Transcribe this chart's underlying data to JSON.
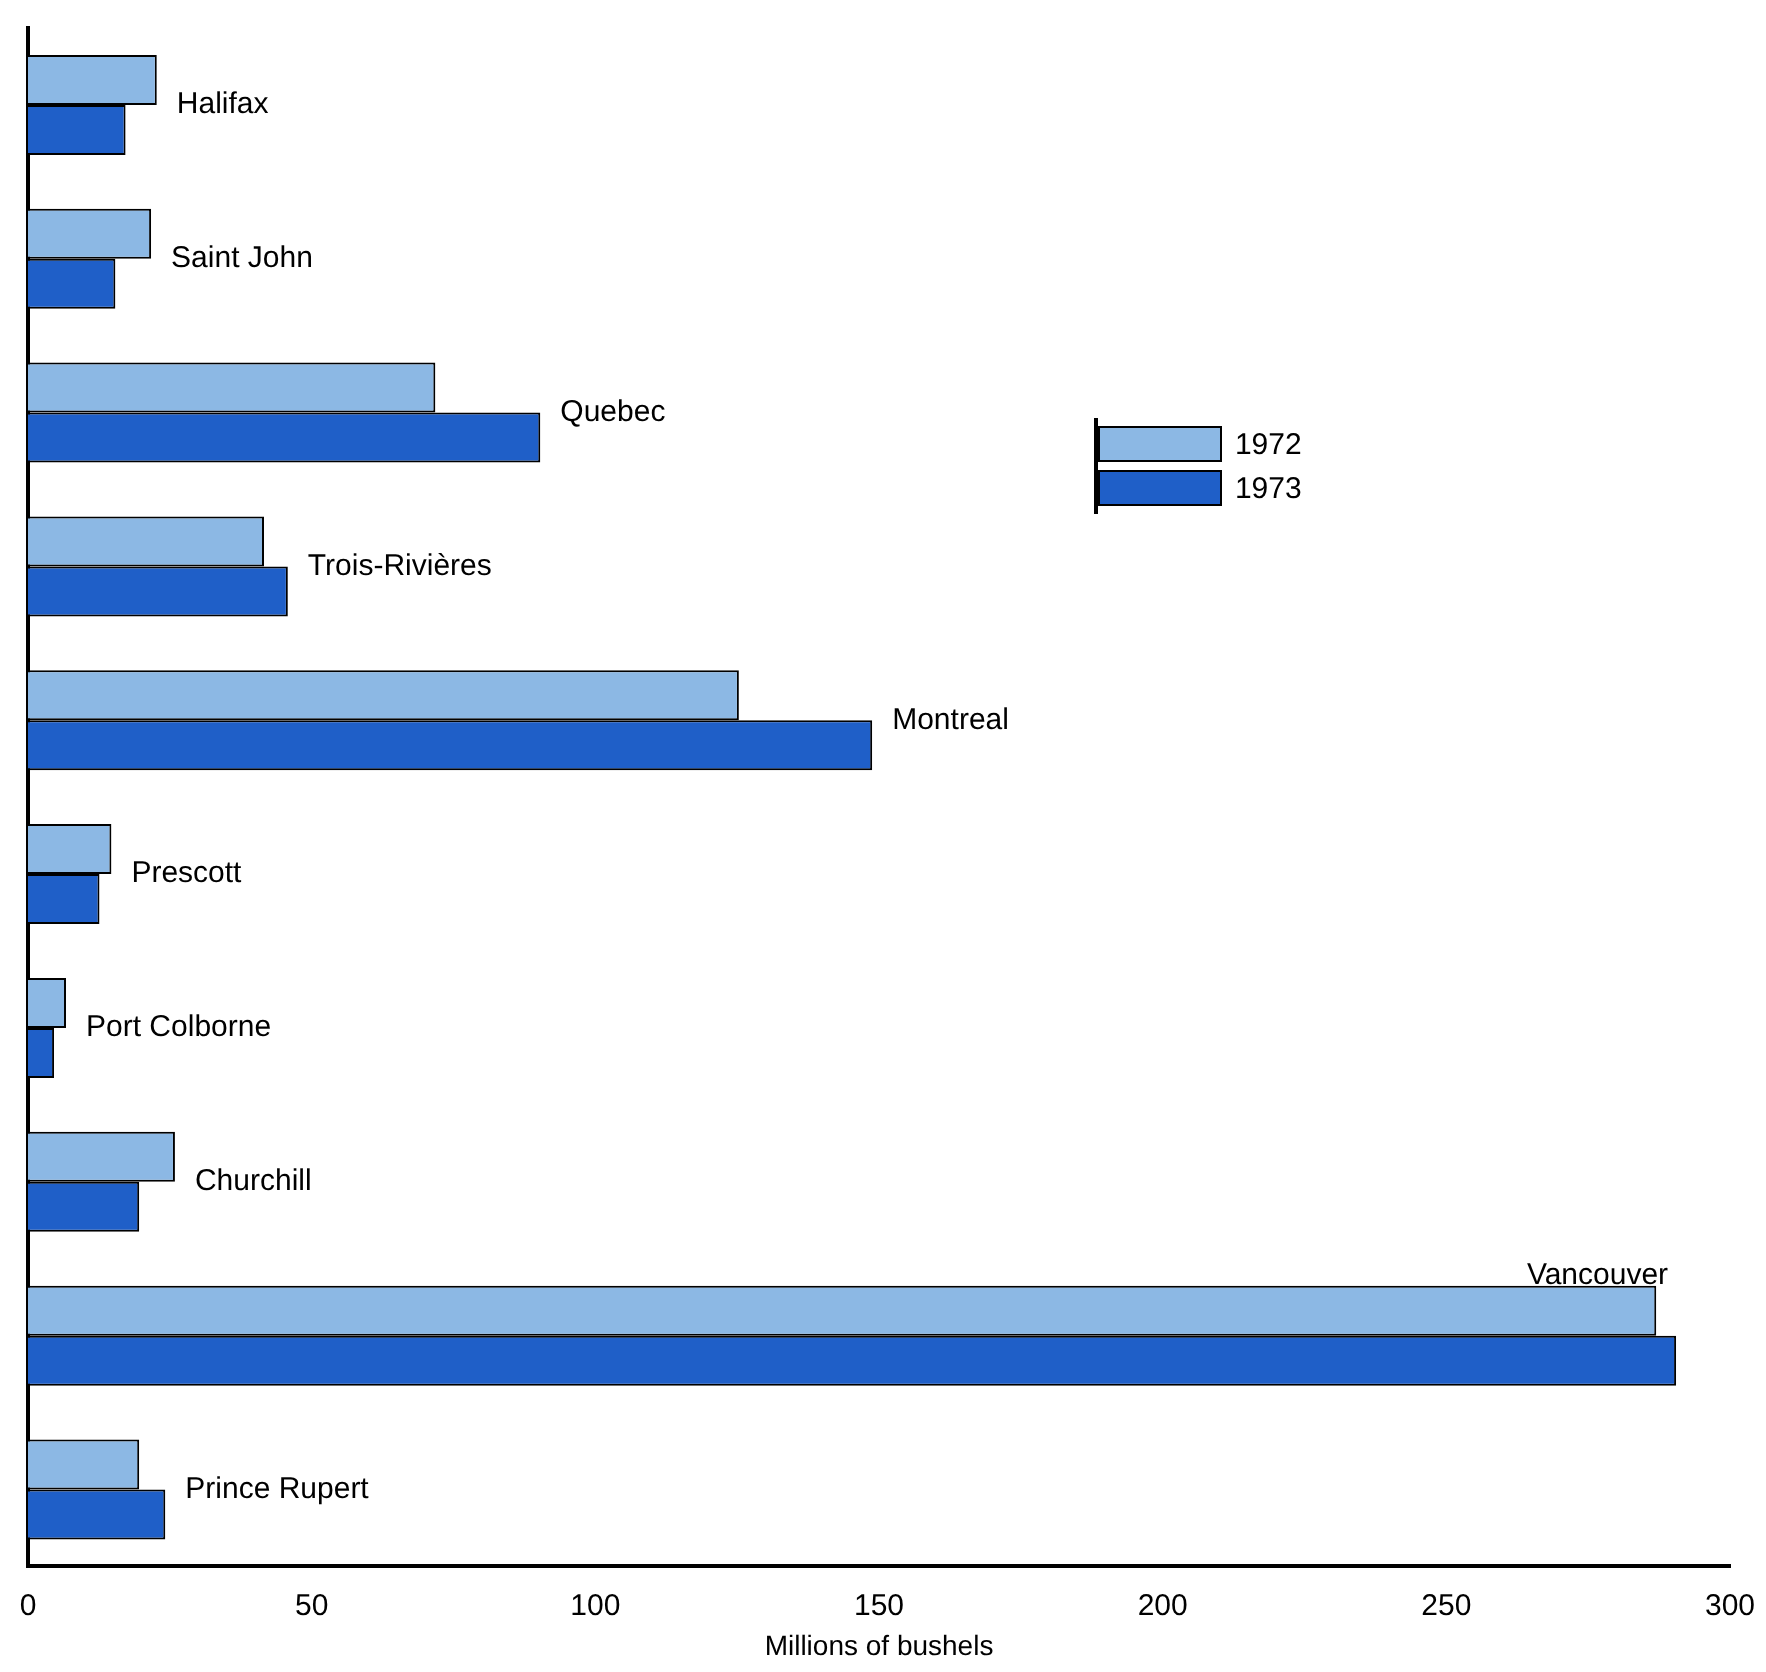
{
  "chart_data": {
    "type": "bar",
    "orientation": "horizontal",
    "xlabel": "Millions of bushels",
    "categories": [
      "Halifax",
      "Saint John",
      "Quebec",
      "Trois-Rivières",
      "Montreal",
      "Prescott",
      "Port Colborne",
      "Churchill",
      "Vancouver",
      "Prince Rupert"
    ],
    "series": [
      {
        "name": "1972",
        "color": "#8cb8e4",
        "values": [
          22.7,
          21.7,
          71.8,
          41.6,
          125.3,
          14.7,
          6.7,
          25.9,
          287,
          19.6
        ]
      },
      {
        "name": "1973",
        "color": "#1f5fc8",
        "values": [
          17.2,
          15.4,
          90.3,
          45.8,
          148.8,
          12.6,
          4.6,
          19.6,
          290.5,
          24.2
        ]
      }
    ],
    "xlim": [
      0,
      300
    ],
    "xticks": [
      0,
      50,
      100,
      150,
      200,
      250,
      300
    ],
    "grid": false,
    "legend": "top right"
  }
}
